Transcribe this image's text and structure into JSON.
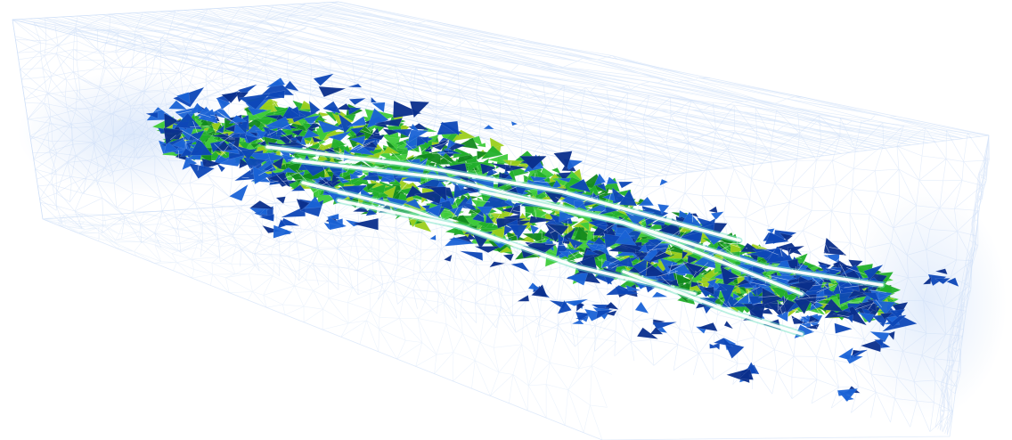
{
  "scene": {
    "background_color": "#ffffff",
    "wireframe_color": "#c9dcf7",
    "wireframe_highlight_color": "#dde9fb",
    "crack_highlight_color": "#ffffff",
    "palette": {
      "blue_dark": "#0a2f8c",
      "blue_mid": "#0d47b8",
      "blue_light": "#1a63d6",
      "green_dark": "#128a1e",
      "green_mid": "#22b02c",
      "green_light": "#3fcc3a",
      "yellow_green": "#9bcf1c",
      "cyan_edge": "#7fe3c8"
    },
    "elements": {
      "outer_wireframe_box": "tetrahedral-mesh-box",
      "damage_cloud": "cracked-elements",
      "crack_channels": "crack-lines"
    }
  }
}
